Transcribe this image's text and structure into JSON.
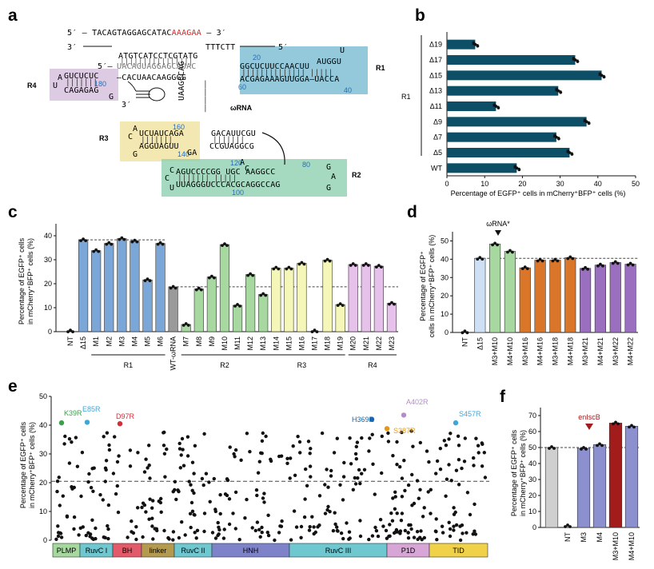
{
  "panel_labels": [
    "a",
    "b",
    "c",
    "d",
    "e",
    "f"
  ],
  "colors": {
    "teal": "#0e4f68",
    "blue": "#7aa6d8",
    "gray": "#9a9a9a",
    "green": "#a6d8a0",
    "yellow": "#f4f7b8",
    "pink": "#e6c1ea",
    "lightblue": "#cfe0f5",
    "orange": "#d9762a",
    "purple": "#9b6fc0",
    "darkred": "#a31c1c",
    "periwinkle": "#8d90cf",
    "lightgray": "#cfcfcf",
    "R1": "#6fb7ce",
    "R2": "#8fcfb0",
    "R3": "#f2e5a8",
    "R4": "#d7c1de"
  },
  "schematic": {
    "target_top": "5′ — TACAGTAGGAGCATAC",
    "target_top_pam": "AAAGAA",
    "target_top_end": "3′",
    "target_bottom_start": "3′",
    "target_bottom": "ATGTCATCCTCGTATG",
    "target_bottom_right": "TTTCTT",
    "target_bottom_end": "5′",
    "rna_5p": "5′–",
    "rna_guide": "UACAGUAGGAGCAUAC",
    "R1_top": "GGCUCUUCCAACUU",
    "R1_top2": "AUGGU",
    "R1_loop": "U",
    "R1_bottom": "ACGAGAAAGUUGGA–UACCA",
    "R1_n1": "20",
    "R1_n2": "60",
    "R1_n3": "40",
    "R4_top": "GUCUCUC",
    "R4_bottom": "CAGAGAG",
    "R4_loopA": "A",
    "R4_loopU": "U",
    "R4_loopG": "G",
    "R4_linker": "–CACUAACAAGGGG",
    "R4_n": "180",
    "rna_3p": "3′",
    "stem_vertical": "UAAGCCAG",
    "omega_label": "ωRNA",
    "R3_top": "UCUAUCAGA",
    "R3_bottom": "AGGUAGUU",
    "R3_A": "A",
    "R3_C": "C",
    "R3_G": "G",
    "R3_n1": "160",
    "R3_n2": "140",
    "R3_GA": "GA",
    "mid_top": "GACAUUCGU",
    "mid_bottom": "CCGUAGGCG",
    "R2_top": "AGUCCCCGG UGC  AAGGCC",
    "R2_bottom": "UUAGGGUCCCACGCAGGCCAG",
    "R2_n1": "120",
    "R2_n2": "80",
    "R2_n3": "100",
    "R2_A": "A",
    "R2_C": "C",
    "region_labels": [
      "R1",
      "R2",
      "R3",
      "R4"
    ]
  },
  "panel_b": {
    "xlabel": "Percentage of EGFP⁺ cells in mCherry⁺BFP⁺ cells (%)",
    "group_label": "R1",
    "xticks": [
      "0",
      "10",
      "20",
      "30",
      "40",
      "50"
    ]
  },
  "panel_c": {
    "ylabel": [
      "Percentage of EGFP⁺ cells",
      "in mCherry⁺BFP⁺ cells (%)"
    ],
    "yticks": [
      "0",
      "10",
      "20",
      "30",
      "40"
    ],
    "groups": [
      "R1",
      "R2",
      "R3",
      "R4"
    ]
  },
  "panel_d": {
    "ylabel": [
      "Percentage of EGFP⁺",
      "cells in mCherry⁺BFP⁺ cells (%)"
    ],
    "yticks": [
      "0",
      "10",
      "20",
      "30",
      "40",
      "50"
    ],
    "annotation": "ωRNA*"
  },
  "panel_e": {
    "ylabel": [
      "Percentage of EGFP⁺ cells",
      "in mCherry⁺BFP⁺ cells (%)"
    ],
    "yticks": [
      "0",
      "10",
      "20",
      "30",
      "40",
      "50"
    ],
    "domains": [
      "PLMP",
      "RuvC I",
      "BH",
      "linker",
      "RuvC II",
      "HNH",
      "RuvC III",
      "P1D",
      "TID"
    ],
    "labels": [
      "K39R",
      "E85R",
      "D97R",
      "H369R",
      "S387R",
      "A402R",
      "S457R"
    ]
  },
  "panel_f": {
    "ylabel": [
      "Percentage of EGFP⁺ cells",
      "in mCherry⁺BFP⁺ cells (%)"
    ],
    "yticks": [
      "0",
      "10",
      "20",
      "30",
      "40",
      "50",
      "60",
      "70"
    ],
    "annotation": "enIscB"
  },
  "chart_data": [
    {
      "panel": "b",
      "type": "bar",
      "orientation": "horizontal",
      "categories": [
        "Δ19",
        "Δ17",
        "Δ15",
        "Δ13",
        "Δ11",
        "Δ9",
        "Δ7",
        "Δ5",
        "WT"
      ],
      "values": [
        7.5,
        34,
        41,
        29.5,
        13,
        37,
        29,
        32.5,
        18.5
      ],
      "xlim": [
        0,
        50
      ],
      "xlabel": "Percentage of EGFP⁺ cells in mCherry⁺BFP⁺ cells (%)"
    },
    {
      "panel": "c",
      "type": "bar",
      "categories": [
        "NT",
        "Δ15",
        "M1",
        "M2",
        "M3",
        "M4",
        "M5",
        "M6",
        "WT-ωRNA",
        "M7",
        "M8",
        "M9",
        "M10",
        "M11",
        "M12",
        "M13",
        "M14",
        "M15",
        "M16",
        "M17",
        "M18",
        "M19",
        "M20",
        "M21",
        "M22",
        "M23"
      ],
      "values": [
        0.3,
        38.3,
        33.8,
        36.8,
        38.8,
        37.8,
        21.6,
        36.8,
        18.5,
        3,
        17.8,
        22.8,
        36.3,
        11,
        23.8,
        15.5,
        26.5,
        26.5,
        28.5,
        0.3,
        29.8,
        11.3,
        28,
        28,
        27.3,
        11.8
      ],
      "ylim": [
        0,
        45
      ],
      "reference_lines": [
        38.3,
        18.7
      ],
      "groups": [
        {
          "name": "R1",
          "from": "M1",
          "to": "M6"
        },
        {
          "name": "R2",
          "from": "M7",
          "to": "M13"
        },
        {
          "name": "R3",
          "from": "M13",
          "to": "M19"
        },
        {
          "name": "R4",
          "from": "M20",
          "to": "M23"
        }
      ]
    },
    {
      "panel": "d",
      "type": "bar",
      "categories": [
        "NT",
        "Δ15",
        "M3+M10",
        "M4+M10",
        "M3+M16",
        "M4+M16",
        "M3+M18",
        "M4+M18",
        "M3+M21",
        "M4+M21",
        "M3+M22",
        "M4+M22"
      ],
      "values": [
        0.3,
        40.5,
        48.3,
        44.3,
        35.3,
        39.5,
        39.5,
        40.8,
        35,
        36.8,
        38.2,
        37.3
      ],
      "ylim": [
        0,
        55
      ],
      "reference_lines": [
        40.5
      ]
    },
    {
      "panel": "e",
      "type": "scatter",
      "ylim": [
        0,
        50
      ],
      "reference_lines": [
        20.5
      ],
      "highlighted": [
        {
          "label": "K39R",
          "value": 40.8
        },
        {
          "label": "E85R",
          "value": 41
        },
        {
          "label": "D97R",
          "value": 40.5
        },
        {
          "label": "H369R",
          "value": 42
        },
        {
          "label": "S387R",
          "value": 38.8
        },
        {
          "label": "A402R",
          "value": 43.5
        },
        {
          "label": "S457R",
          "value": 40.8
        }
      ]
    },
    {
      "panel": "f",
      "type": "bar",
      "categories": [
        "",
        "NT",
        "M3",
        "M4",
        "M3+M10",
        "M4+M10"
      ],
      "values": [
        50,
        1,
        49.5,
        51.8,
        65.3,
        63.3
      ],
      "ylim": [
        0,
        75
      ],
      "reference_lines": [
        50
      ]
    }
  ]
}
